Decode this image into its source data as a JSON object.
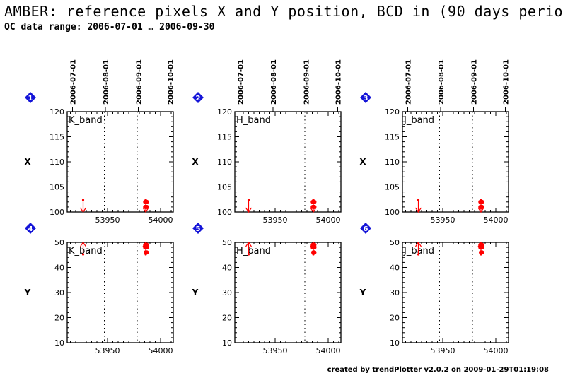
{
  "header": {
    "title": "AMBER: reference pixels X and Y position, BCD in (90 days perio",
    "subtitle": "QC data range: 2006-07-01 … 2006-09-30"
  },
  "footer": {
    "text": "created by trendPlotter v2.0.2 on 2009-01-29T01:19:08"
  },
  "colors": {
    "data": "#ff0000",
    "marker": "#1515d8",
    "axis": "#000000"
  },
  "chart_data": [
    {
      "id": 1,
      "type": "scatter",
      "band_label": "K_band",
      "ylabel": "X",
      "xlim": [
        53912,
        54012
      ],
      "ylim": [
        100,
        120
      ],
      "xticks": [
        53950,
        54000
      ],
      "yticks": [
        100,
        105,
        110,
        115,
        120
      ],
      "date_axis": [
        "2006-07-01",
        "2006-08-01",
        "2006-09-01",
        "2006-10-01"
      ],
      "dotted_lines": [
        53947,
        53978
      ],
      "outliers_low": [
        53927,
        53986
      ],
      "series": [
        {
          "x": [
            53985.5,
            53986,
            53986.5,
            53987,
            53985.5,
            53986,
            53986.5,
            53987
          ],
          "y": [
            102,
            102,
            102,
            102,
            101,
            101,
            101,
            101
          ]
        }
      ]
    },
    {
      "id": 2,
      "type": "scatter",
      "band_label": "H_band",
      "ylabel": "X",
      "xlim": [
        53912,
        54012
      ],
      "ylim": [
        100,
        120
      ],
      "xticks": [
        53950,
        54000
      ],
      "yticks": [
        100,
        105,
        110,
        115,
        120
      ],
      "date_axis": [
        "2006-07-01",
        "2006-08-01",
        "2006-09-01",
        "2006-10-01"
      ],
      "dotted_lines": [
        53947,
        53978
      ],
      "outliers_low": [
        53925,
        53986
      ],
      "series": [
        {
          "x": [
            53985.5,
            53986,
            53986.5,
            53987,
            53985.5,
            53986,
            53986.5,
            53987
          ],
          "y": [
            102,
            102,
            102,
            102,
            101,
            101,
            101,
            101
          ]
        }
      ]
    },
    {
      "id": 3,
      "type": "scatter",
      "band_label": "J_band",
      "ylabel": "X",
      "xlim": [
        53912,
        54012
      ],
      "ylim": [
        100,
        120
      ],
      "xticks": [
        53950,
        54000
      ],
      "yticks": [
        100,
        105,
        110,
        115,
        120
      ],
      "date_axis": [
        "2006-07-01",
        "2006-08-01",
        "2006-09-01",
        "2006-10-01"
      ],
      "dotted_lines": [
        53947,
        53978
      ],
      "outliers_low": [
        53927,
        53986
      ],
      "series": [
        {
          "x": [
            53985.5,
            53986,
            53986.5,
            53987,
            53985.5,
            53986,
            53986.5,
            53987
          ],
          "y": [
            102,
            102,
            102,
            102,
            101,
            101,
            101,
            101
          ]
        }
      ]
    },
    {
      "id": 4,
      "type": "scatter",
      "band_label": "K_band",
      "ylabel": "Y",
      "xlim": [
        53912,
        54012
      ],
      "ylim": [
        10,
        50
      ],
      "xticks": [
        53950,
        54000
      ],
      "yticks": [
        10,
        20,
        30,
        40,
        50
      ],
      "dotted_lines": [
        53947,
        53978
      ],
      "outliers_high": [
        53927,
        53986
      ],
      "series": [
        {
          "x": [
            53985.5,
            53986,
            53986.5,
            53987,
            53985.5,
            53986,
            53986.5,
            53987,
            53986,
            53987
          ],
          "y": [
            49,
            49,
            49,
            49,
            48,
            48,
            48,
            48,
            46,
            46
          ]
        }
      ]
    },
    {
      "id": 5,
      "type": "scatter",
      "band_label": "H_band",
      "ylabel": "Y",
      "xlim": [
        53912,
        54012
      ],
      "ylim": [
        10,
        50
      ],
      "xticks": [
        53950,
        54000
      ],
      "yticks": [
        10,
        20,
        30,
        40,
        50
      ],
      "dotted_lines": [
        53947,
        53978
      ],
      "outliers_high": [
        53925,
        53986
      ],
      "series": [
        {
          "x": [
            53985.5,
            53986,
            53986.5,
            53987,
            53985.5,
            53986,
            53986.5,
            53987,
            53986,
            53987
          ],
          "y": [
            49,
            49,
            49,
            49,
            48,
            48,
            48,
            48,
            46,
            46
          ]
        }
      ]
    },
    {
      "id": 6,
      "type": "scatter",
      "band_label": "J_band",
      "ylabel": "Y",
      "xlim": [
        53912,
        54012
      ],
      "ylim": [
        10,
        50
      ],
      "xticks": [
        53950,
        54000
      ],
      "yticks": [
        10,
        20,
        30,
        40,
        50
      ],
      "dotted_lines": [
        53947,
        53978
      ],
      "outliers_high": [
        53927,
        53986
      ],
      "series": [
        {
          "x": [
            53985.5,
            53986,
            53986.5,
            53987,
            53985.5,
            53986,
            53986.5,
            53987,
            53986,
            53987
          ],
          "y": [
            49,
            49,
            49,
            49,
            48,
            48,
            48,
            48,
            46,
            46
          ]
        }
      ]
    }
  ]
}
